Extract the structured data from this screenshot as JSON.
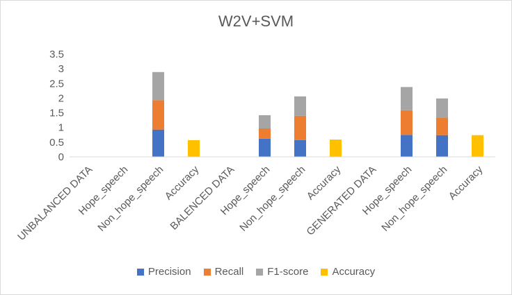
{
  "chart_data": {
    "type": "bar",
    "stacked": true,
    "title": "W2V+SVM",
    "xlabel": "",
    "ylabel": "",
    "ylim": [
      0,
      3.5
    ],
    "yticks": [
      "0",
      "0.5",
      "1",
      "1.5",
      "2",
      "2.5",
      "3",
      "3.5"
    ],
    "grid": false,
    "legend_position": "bottom",
    "categories": [
      "UNBALANCED DATA",
      "Hope_speech",
      "Non_hope_speech",
      "Accuracy",
      "BALENCED DATA",
      "Hope_speech",
      "Non_hope_speech",
      "Accuracy",
      "GENERATED DATA",
      "Hope_speech",
      "Non_hope_speech",
      "Accuracy"
    ],
    "series": [
      {
        "name": "Precision",
        "color": "#4472c4",
        "values": [
          null,
          0,
          0.93,
          null,
          null,
          0.62,
          0.57,
          null,
          null,
          0.75,
          0.74,
          null
        ]
      },
      {
        "name": "Recall",
        "color": "#ed7d31",
        "values": [
          null,
          0,
          1.0,
          null,
          null,
          0.35,
          0.83,
          null,
          null,
          0.84,
          0.6,
          null
        ]
      },
      {
        "name": "F1-score",
        "color": "#a5a5a5",
        "values": [
          null,
          0,
          0.96,
          null,
          null,
          0.45,
          0.66,
          null,
          null,
          0.79,
          0.65,
          null
        ]
      },
      {
        "name": "Accuracy",
        "color": "#ffc000",
        "values": [
          null,
          null,
          null,
          0.57,
          null,
          null,
          null,
          0.59,
          null,
          null,
          null,
          0.74
        ]
      }
    ]
  }
}
